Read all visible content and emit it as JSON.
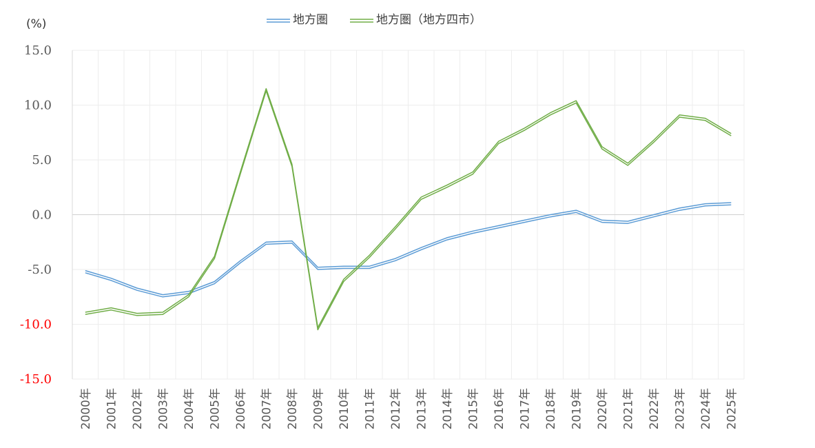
{
  "chart_data": {
    "type": "line",
    "title": "",
    "xlabel": "",
    "ylabel": "",
    "unit_label": "(%)",
    "categories": [
      "2000年",
      "2001年",
      "2002年",
      "2003年",
      "2004年",
      "2005年",
      "2006年",
      "2007年",
      "2008年",
      "2009年",
      "2010年",
      "2011年",
      "2012年",
      "2013年",
      "2014年",
      "2015年",
      "2016年",
      "2017年",
      "2018年",
      "2019年",
      "2020年",
      "2021年",
      "2022年",
      "2023年",
      "2024年",
      "2025年"
    ],
    "series": [
      {
        "name": "地方圏",
        "color": "#5B9BD5",
        "values": [
          -5.2,
          -5.9,
          -6.8,
          -7.4,
          -7.1,
          -6.2,
          -4.3,
          -2.6,
          -2.5,
          -4.9,
          -4.8,
          -4.8,
          -4.1,
          -3.1,
          -2.2,
          -1.6,
          -1.1,
          -0.6,
          -0.1,
          0.3,
          -0.6,
          -0.7,
          -0.1,
          0.5,
          0.9,
          1.0
        ]
      },
      {
        "name": "地方圏（地方四市）",
        "color": "#70AD47",
        "values": [
          -9.0,
          -8.6,
          -9.1,
          -9.0,
          -7.4,
          -3.9,
          3.8,
          11.4,
          4.5,
          -10.4,
          -6.0,
          -3.8,
          -1.2,
          1.5,
          2.6,
          3.8,
          6.6,
          7.8,
          9.2,
          10.3,
          6.1,
          4.6,
          6.7,
          9.0,
          8.7,
          7.3
        ]
      }
    ],
    "yticks": [
      {
        "label": "15.0",
        "value": 15,
        "color": "#595959"
      },
      {
        "label": "10.0",
        "value": 10,
        "color": "#595959"
      },
      {
        "label": "5.0",
        "value": 5,
        "color": "#595959"
      },
      {
        "label": "0.0",
        "value": 0,
        "color": "#595959"
      },
      {
        "label": "-5.0",
        "value": -5,
        "color": "#595959"
      },
      {
        "label": "-10.0",
        "value": -10,
        "color": "#FF0000"
      },
      {
        "label": "-15.0",
        "value": -15,
        "color": "#FF0000"
      }
    ],
    "ylim": [
      -15,
      15
    ],
    "grid": true,
    "legend_position": "top"
  }
}
